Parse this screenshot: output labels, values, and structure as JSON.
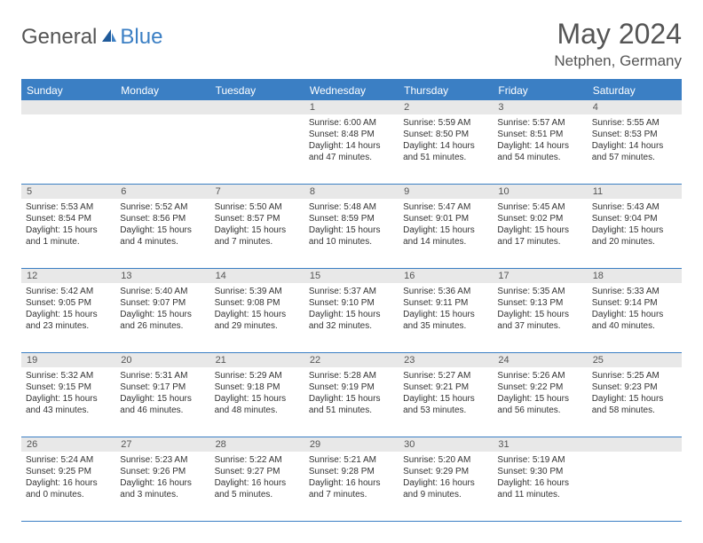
{
  "logo": {
    "general": "General",
    "blue": "Blue"
  },
  "title": "May 2024",
  "location": "Netphen, Germany",
  "colors": {
    "accent": "#3b7fc4",
    "header_text": "#ffffff",
    "daynum_bg": "#e8e8e8",
    "body_text": "#333333",
    "title_text": "#555555"
  },
  "day_headers": [
    "Sunday",
    "Monday",
    "Tuesday",
    "Wednesday",
    "Thursday",
    "Friday",
    "Saturday"
  ],
  "weeks": [
    [
      {
        "n": "",
        "sr": "",
        "ss": "",
        "dl": ""
      },
      {
        "n": "",
        "sr": "",
        "ss": "",
        "dl": ""
      },
      {
        "n": "",
        "sr": "",
        "ss": "",
        "dl": ""
      },
      {
        "n": "1",
        "sr": "Sunrise: 6:00 AM",
        "ss": "Sunset: 8:48 PM",
        "dl": "Daylight: 14 hours and 47 minutes."
      },
      {
        "n": "2",
        "sr": "Sunrise: 5:59 AM",
        "ss": "Sunset: 8:50 PM",
        "dl": "Daylight: 14 hours and 51 minutes."
      },
      {
        "n": "3",
        "sr": "Sunrise: 5:57 AM",
        "ss": "Sunset: 8:51 PM",
        "dl": "Daylight: 14 hours and 54 minutes."
      },
      {
        "n": "4",
        "sr": "Sunrise: 5:55 AM",
        "ss": "Sunset: 8:53 PM",
        "dl": "Daylight: 14 hours and 57 minutes."
      }
    ],
    [
      {
        "n": "5",
        "sr": "Sunrise: 5:53 AM",
        "ss": "Sunset: 8:54 PM",
        "dl": "Daylight: 15 hours and 1 minute."
      },
      {
        "n": "6",
        "sr": "Sunrise: 5:52 AM",
        "ss": "Sunset: 8:56 PM",
        "dl": "Daylight: 15 hours and 4 minutes."
      },
      {
        "n": "7",
        "sr": "Sunrise: 5:50 AM",
        "ss": "Sunset: 8:57 PM",
        "dl": "Daylight: 15 hours and 7 minutes."
      },
      {
        "n": "8",
        "sr": "Sunrise: 5:48 AM",
        "ss": "Sunset: 8:59 PM",
        "dl": "Daylight: 15 hours and 10 minutes."
      },
      {
        "n": "9",
        "sr": "Sunrise: 5:47 AM",
        "ss": "Sunset: 9:01 PM",
        "dl": "Daylight: 15 hours and 14 minutes."
      },
      {
        "n": "10",
        "sr": "Sunrise: 5:45 AM",
        "ss": "Sunset: 9:02 PM",
        "dl": "Daylight: 15 hours and 17 minutes."
      },
      {
        "n": "11",
        "sr": "Sunrise: 5:43 AM",
        "ss": "Sunset: 9:04 PM",
        "dl": "Daylight: 15 hours and 20 minutes."
      }
    ],
    [
      {
        "n": "12",
        "sr": "Sunrise: 5:42 AM",
        "ss": "Sunset: 9:05 PM",
        "dl": "Daylight: 15 hours and 23 minutes."
      },
      {
        "n": "13",
        "sr": "Sunrise: 5:40 AM",
        "ss": "Sunset: 9:07 PM",
        "dl": "Daylight: 15 hours and 26 minutes."
      },
      {
        "n": "14",
        "sr": "Sunrise: 5:39 AM",
        "ss": "Sunset: 9:08 PM",
        "dl": "Daylight: 15 hours and 29 minutes."
      },
      {
        "n": "15",
        "sr": "Sunrise: 5:37 AM",
        "ss": "Sunset: 9:10 PM",
        "dl": "Daylight: 15 hours and 32 minutes."
      },
      {
        "n": "16",
        "sr": "Sunrise: 5:36 AM",
        "ss": "Sunset: 9:11 PM",
        "dl": "Daylight: 15 hours and 35 minutes."
      },
      {
        "n": "17",
        "sr": "Sunrise: 5:35 AM",
        "ss": "Sunset: 9:13 PM",
        "dl": "Daylight: 15 hours and 37 minutes."
      },
      {
        "n": "18",
        "sr": "Sunrise: 5:33 AM",
        "ss": "Sunset: 9:14 PM",
        "dl": "Daylight: 15 hours and 40 minutes."
      }
    ],
    [
      {
        "n": "19",
        "sr": "Sunrise: 5:32 AM",
        "ss": "Sunset: 9:15 PM",
        "dl": "Daylight: 15 hours and 43 minutes."
      },
      {
        "n": "20",
        "sr": "Sunrise: 5:31 AM",
        "ss": "Sunset: 9:17 PM",
        "dl": "Daylight: 15 hours and 46 minutes."
      },
      {
        "n": "21",
        "sr": "Sunrise: 5:29 AM",
        "ss": "Sunset: 9:18 PM",
        "dl": "Daylight: 15 hours and 48 minutes."
      },
      {
        "n": "22",
        "sr": "Sunrise: 5:28 AM",
        "ss": "Sunset: 9:19 PM",
        "dl": "Daylight: 15 hours and 51 minutes."
      },
      {
        "n": "23",
        "sr": "Sunrise: 5:27 AM",
        "ss": "Sunset: 9:21 PM",
        "dl": "Daylight: 15 hours and 53 minutes."
      },
      {
        "n": "24",
        "sr": "Sunrise: 5:26 AM",
        "ss": "Sunset: 9:22 PM",
        "dl": "Daylight: 15 hours and 56 minutes."
      },
      {
        "n": "25",
        "sr": "Sunrise: 5:25 AM",
        "ss": "Sunset: 9:23 PM",
        "dl": "Daylight: 15 hours and 58 minutes."
      }
    ],
    [
      {
        "n": "26",
        "sr": "Sunrise: 5:24 AM",
        "ss": "Sunset: 9:25 PM",
        "dl": "Daylight: 16 hours and 0 minutes."
      },
      {
        "n": "27",
        "sr": "Sunrise: 5:23 AM",
        "ss": "Sunset: 9:26 PM",
        "dl": "Daylight: 16 hours and 3 minutes."
      },
      {
        "n": "28",
        "sr": "Sunrise: 5:22 AM",
        "ss": "Sunset: 9:27 PM",
        "dl": "Daylight: 16 hours and 5 minutes."
      },
      {
        "n": "29",
        "sr": "Sunrise: 5:21 AM",
        "ss": "Sunset: 9:28 PM",
        "dl": "Daylight: 16 hours and 7 minutes."
      },
      {
        "n": "30",
        "sr": "Sunrise: 5:20 AM",
        "ss": "Sunset: 9:29 PM",
        "dl": "Daylight: 16 hours and 9 minutes."
      },
      {
        "n": "31",
        "sr": "Sunrise: 5:19 AM",
        "ss": "Sunset: 9:30 PM",
        "dl": "Daylight: 16 hours and 11 minutes."
      },
      {
        "n": "",
        "sr": "",
        "ss": "",
        "dl": ""
      }
    ]
  ]
}
